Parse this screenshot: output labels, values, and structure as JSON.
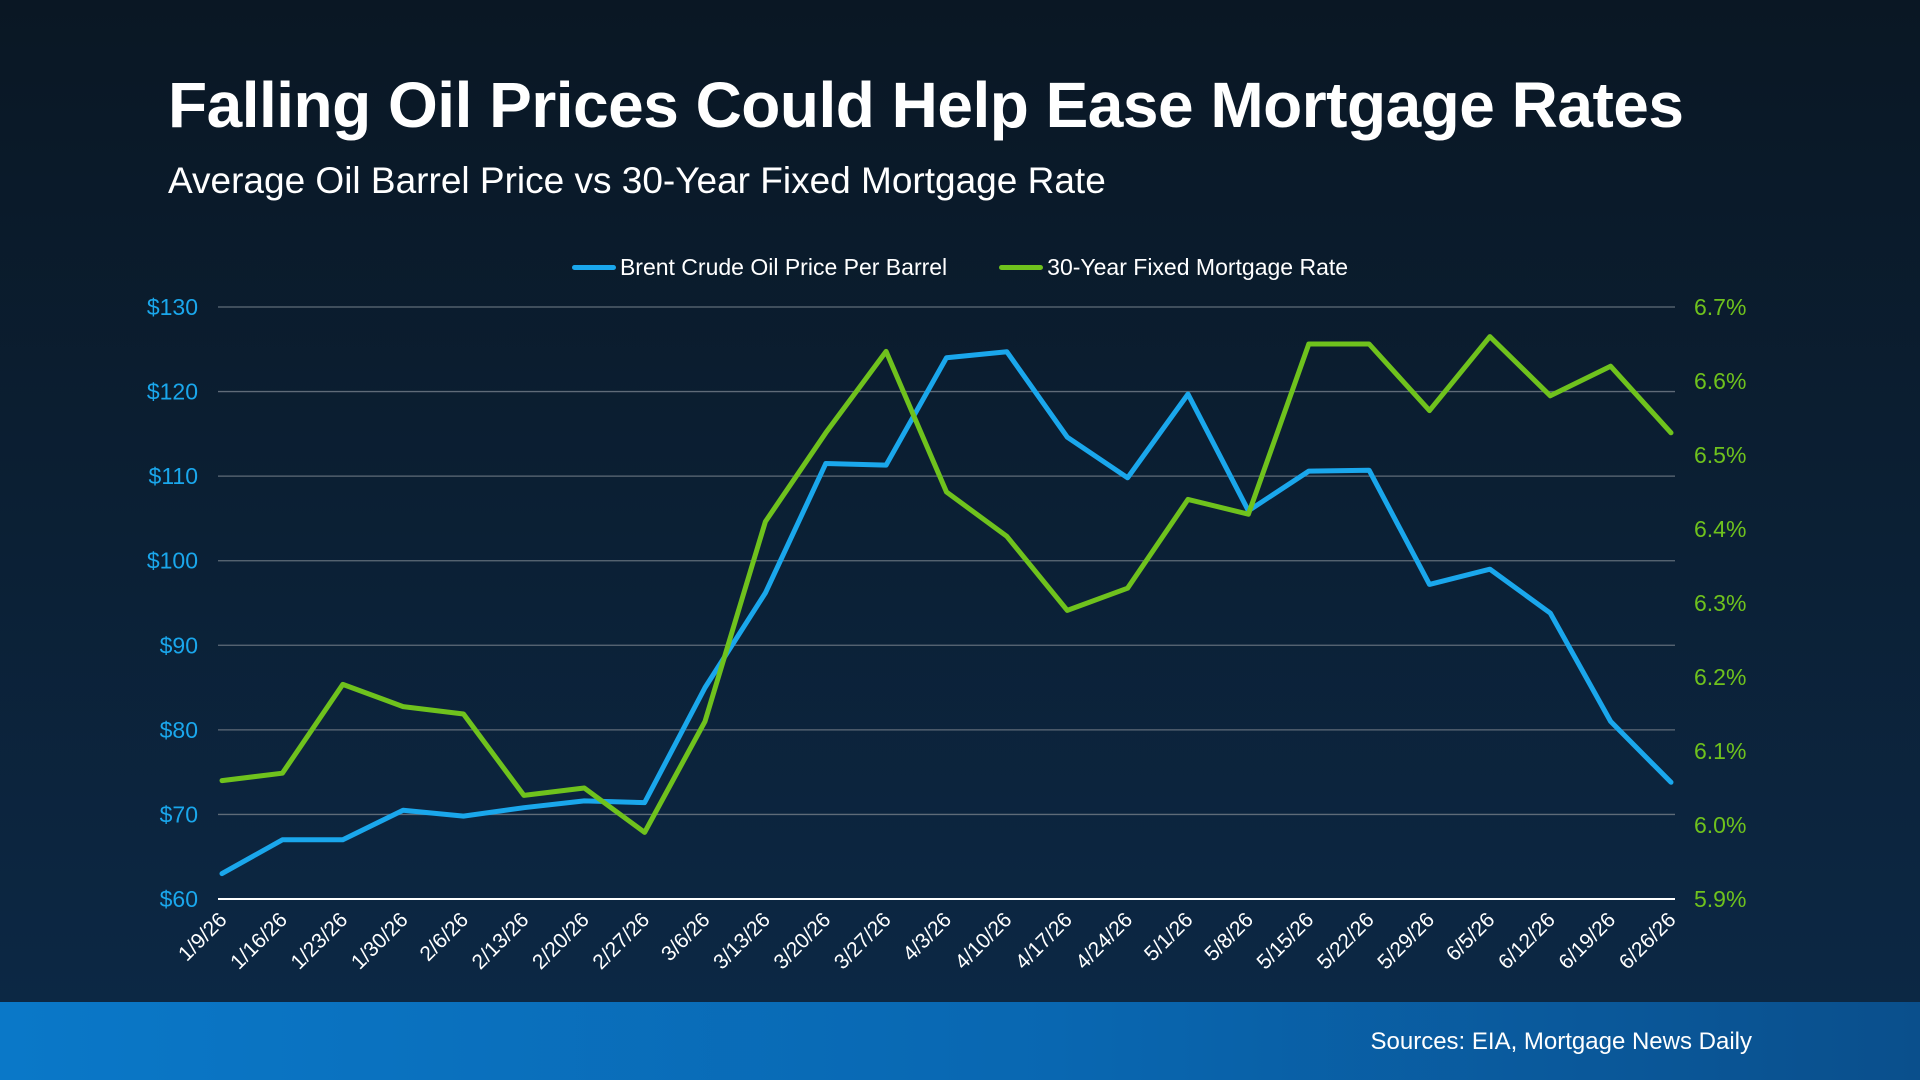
{
  "colors": {
    "oil": "#1aa7ec",
    "mortgage": "#6fc21d",
    "grid": "#5f6b78",
    "axis_line": "#ffffff",
    "x_tick_text": "#ffffff"
  },
  "chart_data": {
    "type": "line",
    "title": "Falling Oil Prices Could Help Ease Mortgage Rates",
    "subtitle": "Average Oil Barrel Price vs 30-Year Fixed Mortgage Rate",
    "legend_position": "top-center",
    "grid": true,
    "categories": [
      "1/9/26",
      "1/16/26",
      "1/23/26",
      "1/30/26",
      "2/6/26",
      "2/13/26",
      "2/20/26",
      "2/27/26",
      "3/6/26",
      "3/13/26",
      "3/20/26",
      "3/27/26",
      "4/3/26",
      "4/10/26",
      "4/17/26",
      "4/24/26",
      "5/1/26",
      "5/8/26",
      "5/15/26",
      "5/22/26",
      "5/29/26",
      "6/5/26",
      "6/12/26",
      "6/19/26",
      "6/26/26"
    ],
    "y_left": {
      "ylim": [
        60,
        130
      ],
      "ticks": [
        "$60",
        "$70",
        "$80",
        "$90",
        "$100",
        "$110",
        "$120",
        "$130"
      ],
      "tick_values": [
        60,
        70,
        80,
        90,
        100,
        110,
        120,
        130
      ]
    },
    "y_right": {
      "ylim": [
        5.9,
        6.7
      ],
      "ticks": [
        "5.9%",
        "6.0%",
        "6.1%",
        "6.2%",
        "6.3%",
        "6.4%",
        "6.5%",
        "6.6%",
        "6.7%"
      ],
      "tick_values": [
        5.9,
        6.0,
        6.1,
        6.2,
        6.3,
        6.4,
        6.5,
        6.6,
        6.7
      ]
    },
    "series": [
      {
        "name": "Brent Crude Oil Price Per Barrel",
        "axis": "left",
        "values": [
          63.0,
          67.0,
          67.0,
          70.5,
          69.8,
          70.8,
          71.6,
          71.4,
          85.0,
          96.2,
          111.5,
          111.3,
          124.0,
          124.7,
          114.6,
          109.8,
          119.7,
          105.9,
          110.6,
          110.7,
          97.2,
          99.0,
          93.8,
          81.0,
          73.8
        ]
      },
      {
        "name": "30-Year Fixed Mortgage Rate",
        "axis": "right",
        "values": [
          6.06,
          6.07,
          6.19,
          6.16,
          6.15,
          6.04,
          6.05,
          5.99,
          6.14,
          6.41,
          6.53,
          6.64,
          6.45,
          6.39,
          6.29,
          6.32,
          6.44,
          6.42,
          6.65,
          6.65,
          6.56,
          6.66,
          6.58,
          6.62,
          6.53
        ]
      }
    ],
    "source": "Sources: EIA, Mortgage News Daily"
  }
}
